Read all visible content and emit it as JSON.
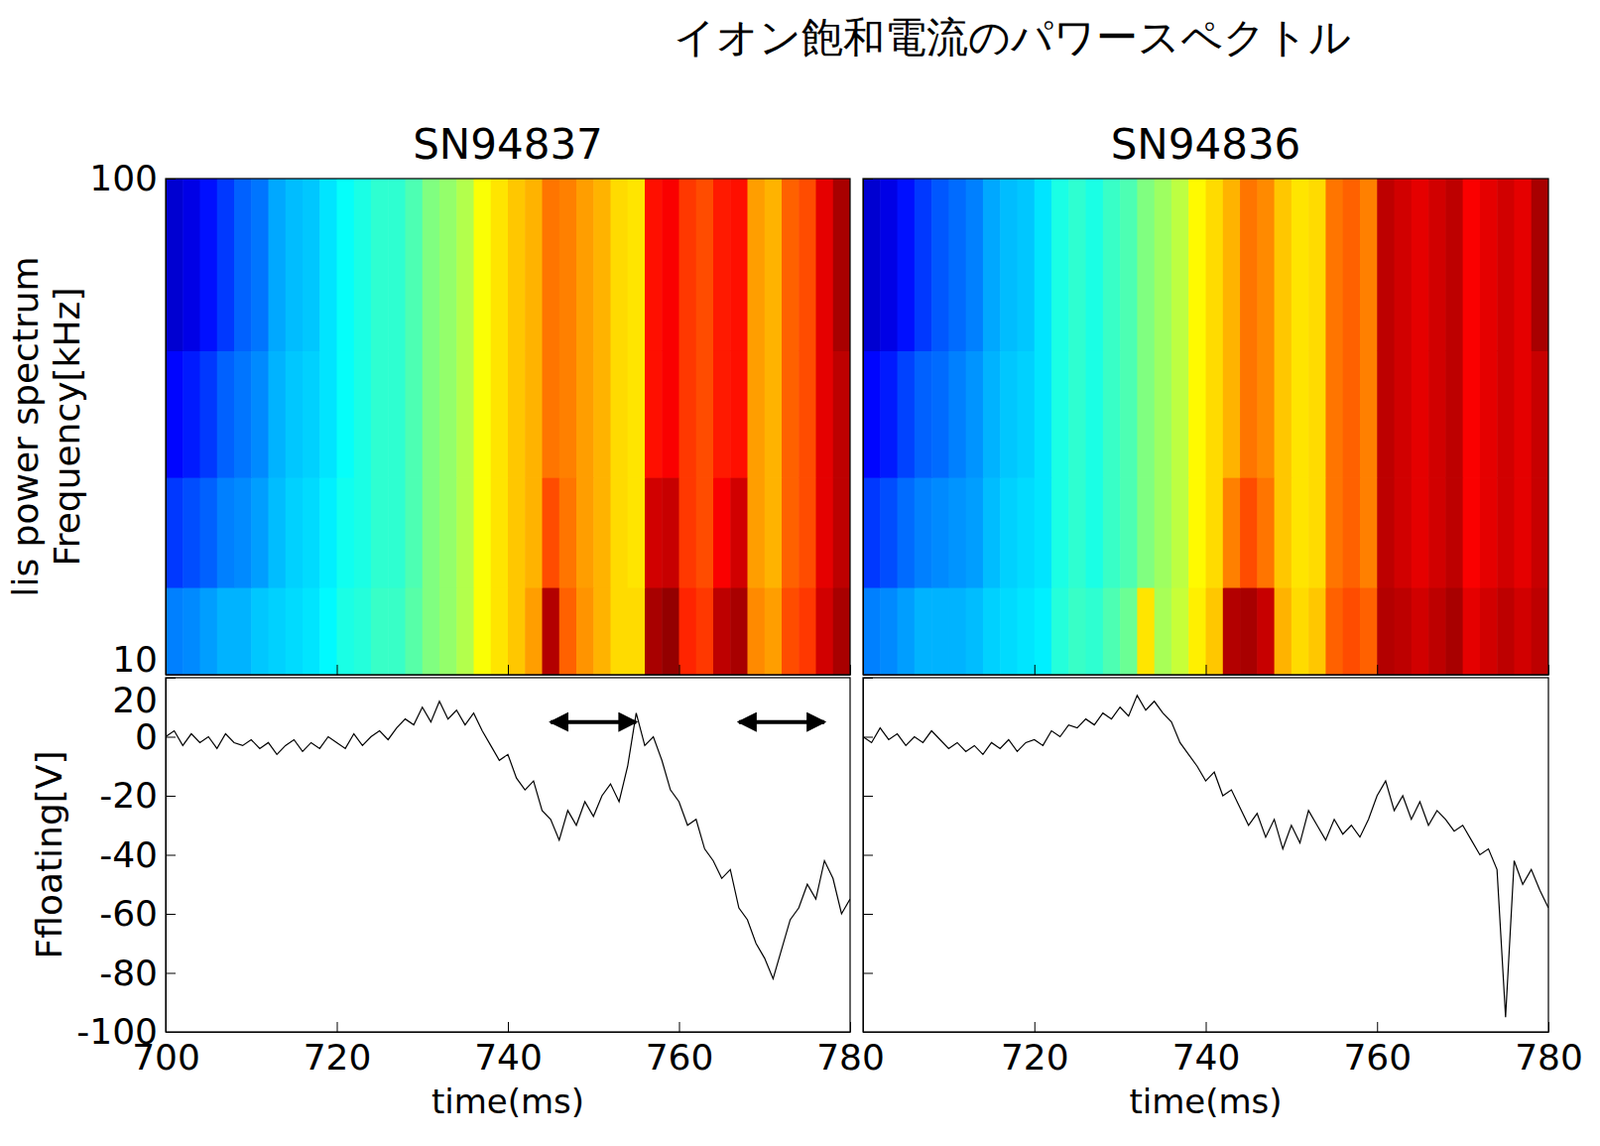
{
  "title": "イオン飽和電流のパワースペクトル",
  "chart_data": [
    {
      "type": "heatmap",
      "title": "SN94837",
      "x_edges": [
        700,
        702,
        704,
        706,
        708,
        710,
        712,
        714,
        716,
        718,
        720,
        722,
        724,
        726,
        728,
        730,
        732,
        734,
        736,
        738,
        740,
        742,
        744,
        746,
        748,
        750,
        752,
        754,
        756,
        758,
        760,
        762,
        764,
        766,
        768,
        770,
        772,
        774,
        776,
        778,
        780
      ],
      "y_edges": [
        10,
        15,
        25,
        45,
        100
      ],
      "cells": [
        [
          2.5,
          2.6,
          2.8,
          3.0,
          3.0,
          3.2,
          3.3,
          3.4,
          3.5,
          3.7,
          4.0,
          4.1,
          4.3,
          4.3,
          4.6,
          5.0,
          5.2,
          5.5,
          6.2,
          6.5,
          6.8,
          7.2,
          9.5,
          7.8,
          7.3,
          7.0,
          6.6,
          6.6,
          9.6,
          9.8,
          8.4,
          8.2,
          9.4,
          9.6,
          7.4,
          7.2,
          8.0,
          8.2,
          9.2,
          9.6
        ],
        [
          1.8,
          2.0,
          2.2,
          2.5,
          2.6,
          2.8,
          3.1,
          3.3,
          3.4,
          3.6,
          3.9,
          4.0,
          4.2,
          4.2,
          4.5,
          5.0,
          5.2,
          5.5,
          6.2,
          6.5,
          6.8,
          7.0,
          8.0,
          7.6,
          7.2,
          7.0,
          6.6,
          6.5,
          9.2,
          9.3,
          8.2,
          8.0,
          8.8,
          9.2,
          7.2,
          7.0,
          7.8,
          8.0,
          9.0,
          9.4
        ],
        [
          1.3,
          1.5,
          1.8,
          2.2,
          2.4,
          2.6,
          3.0,
          3.2,
          3.3,
          3.5,
          3.8,
          4.0,
          4.2,
          4.2,
          4.5,
          5.0,
          5.2,
          5.5,
          6.2,
          6.5,
          6.8,
          7.0,
          7.6,
          7.5,
          7.2,
          7.0,
          6.6,
          6.5,
          8.6,
          8.8,
          8.2,
          8.0,
          8.5,
          8.6,
          7.2,
          7.0,
          7.8,
          8.0,
          9.0,
          9.4
        ],
        [
          0.8,
          1.0,
          1.4,
          1.8,
          2.2,
          2.4,
          2.9,
          3.1,
          3.2,
          3.5,
          3.8,
          4.0,
          4.2,
          4.2,
          4.5,
          5.0,
          5.2,
          5.5,
          6.2,
          6.5,
          6.8,
          7.0,
          7.6,
          7.5,
          7.2,
          7.0,
          6.6,
          6.5,
          8.6,
          8.8,
          8.2,
          8.0,
          8.5,
          8.6,
          7.2,
          7.0,
          7.8,
          8.0,
          9.0,
          9.6
        ]
      ],
      "color_range": [
        0,
        10
      ],
      "xlim": [
        700,
        780
      ],
      "ylim": [
        10,
        100
      ],
      "log": "y",
      "xticks": [
        700,
        720,
        740,
        760,
        780
      ],
      "yticks": [
        10,
        100
      ],
      "tick_labels": "y",
      "ylabel_lines": [
        "lis power spectrum",
        "Frequency[kHz]"
      ]
    },
    {
      "type": "heatmap",
      "title": "SN94836",
      "x_edges": [
        700,
        702,
        704,
        706,
        708,
        710,
        712,
        714,
        716,
        718,
        720,
        722,
        724,
        726,
        728,
        730,
        732,
        734,
        736,
        738,
        740,
        742,
        744,
        746,
        748,
        750,
        752,
        754,
        756,
        758,
        760,
        762,
        764,
        766,
        768,
        770,
        772,
        774,
        776,
        778,
        780
      ],
      "y_edges": [
        10,
        15,
        25,
        45,
        100
      ],
      "cells": [
        [
          2.5,
          2.6,
          2.8,
          3.0,
          3.0,
          3.0,
          3.1,
          3.3,
          3.4,
          3.5,
          3.6,
          4.1,
          4.3,
          4.2,
          4.5,
          4.8,
          6.5,
          5.4,
          5.7,
          6.4,
          6.8,
          9.5,
          9.6,
          9.3,
          7.0,
          6.6,
          6.8,
          7.8,
          8.0,
          7.8,
          9.5,
          9.4,
          9.2,
          9.4,
          9.6,
          9.0,
          9.2,
          9.4,
          9.2,
          9.4
        ],
        [
          1.8,
          2.0,
          2.3,
          2.5,
          2.6,
          2.7,
          2.8,
          3.1,
          3.3,
          3.4,
          3.5,
          4.0,
          4.2,
          4.0,
          4.3,
          4.5,
          5.0,
          5.3,
          5.6,
          6.3,
          6.6,
          7.5,
          8.0,
          7.6,
          6.8,
          6.5,
          6.6,
          7.6,
          7.8,
          7.5,
          9.4,
          9.2,
          9.0,
          9.2,
          9.4,
          8.8,
          9.0,
          9.2,
          9.0,
          9.3
        ],
        [
          1.3,
          1.5,
          1.9,
          2.2,
          2.3,
          2.5,
          2.7,
          3.0,
          3.2,
          3.3,
          3.5,
          4.0,
          4.2,
          4.0,
          4.3,
          4.5,
          5.0,
          5.3,
          5.6,
          6.3,
          6.6,
          7.0,
          7.6,
          7.4,
          6.8,
          6.5,
          6.6,
          7.6,
          7.8,
          7.5,
          9.4,
          9.2,
          9.0,
          9.2,
          9.4,
          8.8,
          9.0,
          9.2,
          9.0,
          9.3
        ],
        [
          0.8,
          1.0,
          1.4,
          1.8,
          2.1,
          2.3,
          2.5,
          2.9,
          3.1,
          3.2,
          3.5,
          4.0,
          4.2,
          4.0,
          4.3,
          4.5,
          5.0,
          5.3,
          5.6,
          6.3,
          6.6,
          7.0,
          7.6,
          7.4,
          6.8,
          6.5,
          6.6,
          7.6,
          7.8,
          7.5,
          9.4,
          9.2,
          9.0,
          9.2,
          9.4,
          8.8,
          9.0,
          9.2,
          9.0,
          9.6
        ]
      ],
      "color_range": [
        0,
        10
      ],
      "xlim": [
        700,
        780
      ],
      "ylim": [
        10,
        100
      ],
      "log": "y",
      "xticks": [
        700,
        720,
        740,
        760,
        780
      ],
      "yticks": [
        10,
        100
      ],
      "tick_labels": false
    },
    {
      "type": "line",
      "color": "#000000",
      "x": [
        700,
        701,
        702,
        703,
        704,
        705,
        706,
        707,
        708,
        709,
        710,
        711,
        712,
        713,
        714,
        715,
        716,
        717,
        718,
        719,
        720,
        721,
        722,
        723,
        724,
        725,
        726,
        727,
        728,
        729,
        730,
        731,
        732,
        733,
        734,
        735,
        736,
        737,
        738,
        739,
        740,
        741,
        742,
        743,
        744,
        745,
        746,
        747,
        748,
        749,
        750,
        751,
        752,
        753,
        754,
        755,
        756,
        757,
        758,
        759,
        760,
        761,
        762,
        763,
        764,
        765,
        766,
        767,
        768,
        769,
        770,
        771,
        772,
        773,
        774,
        775,
        776,
        777,
        778,
        779,
        780
      ],
      "values": [
        0,
        2,
        -3,
        1,
        -2,
        0,
        -4,
        1,
        -2,
        -3,
        -1,
        -4,
        -2,
        -6,
        -3,
        -1,
        -5,
        -2,
        -4,
        0,
        -2,
        -4,
        1,
        -3,
        0,
        2,
        -1,
        3,
        6,
        4,
        10,
        5,
        12,
        6,
        9,
        4,
        8,
        2,
        -3,
        -8,
        -6,
        -14,
        -18,
        -15,
        -25,
        -28,
        -35,
        -25,
        -30,
        -22,
        -27,
        -20,
        -16,
        -22,
        -10,
        8,
        -3,
        0,
        -8,
        -18,
        -22,
        -30,
        -28,
        -38,
        -42,
        -48,
        -45,
        -58,
        -62,
        -70,
        -75,
        -82,
        -72,
        -62,
        -58,
        -50,
        -55,
        -42,
        -48,
        -60,
        -55
      ],
      "xlim": [
        700,
        780
      ],
      "ylim": [
        -100,
        20
      ],
      "xticks": [
        700,
        720,
        740,
        760,
        780
      ],
      "yticks": [
        -100,
        -80,
        -60,
        -40,
        -20,
        0,
        20
      ],
      "xlabel": "time(ms)",
      "ylabel": "Ffloating[V]",
      "arrows": [
        {
          "x0": 745,
          "x1": 755,
          "y": 5
        },
        {
          "x0": 767,
          "x1": 777,
          "y": 5
        }
      ]
    },
    {
      "type": "line",
      "color": "#000000",
      "x": [
        700,
        701,
        702,
        703,
        704,
        705,
        706,
        707,
        708,
        709,
        710,
        711,
        712,
        713,
        714,
        715,
        716,
        717,
        718,
        719,
        720,
        721,
        722,
        723,
        724,
        725,
        726,
        727,
        728,
        729,
        730,
        731,
        732,
        733,
        734,
        735,
        736,
        737,
        738,
        739,
        740,
        741,
        742,
        743,
        744,
        745,
        746,
        747,
        748,
        749,
        750,
        751,
        752,
        753,
        754,
        755,
        756,
        757,
        758,
        759,
        760,
        761,
        762,
        763,
        764,
        765,
        766,
        767,
        768,
        769,
        770,
        771,
        772,
        773,
        774,
        775,
        776,
        777,
        778,
        779,
        780
      ],
      "values": [
        0,
        -2,
        3,
        -1,
        1,
        -3,
        0,
        -2,
        2,
        -1,
        -4,
        -2,
        -5,
        -3,
        -6,
        -2,
        -4,
        -1,
        -5,
        -2,
        -1,
        -3,
        2,
        0,
        4,
        3,
        6,
        4,
        8,
        6,
        10,
        7,
        14,
        9,
        12,
        8,
        5,
        -2,
        -6,
        -10,
        -15,
        -12,
        -20,
        -18,
        -24,
        -30,
        -26,
        -34,
        -28,
        -38,
        -30,
        -36,
        -25,
        -30,
        -35,
        -28,
        -33,
        -30,
        -34,
        -28,
        -20,
        -15,
        -25,
        -20,
        -28,
        -22,
        -30,
        -25,
        -28,
        -32,
        -30,
        -35,
        -40,
        -38,
        -45,
        -95,
        -42,
        -50,
        -45,
        -52,
        -58
      ],
      "xlim": [
        700,
        780
      ],
      "ylim": [
        -100,
        20
      ],
      "xticks": [
        720,
        740,
        760,
        780
      ],
      "yticks": [
        -100,
        -80,
        -60,
        -40,
        -20,
        0,
        20
      ],
      "tick_labels": "x",
      "xlabel": "time(ms)"
    }
  ]
}
